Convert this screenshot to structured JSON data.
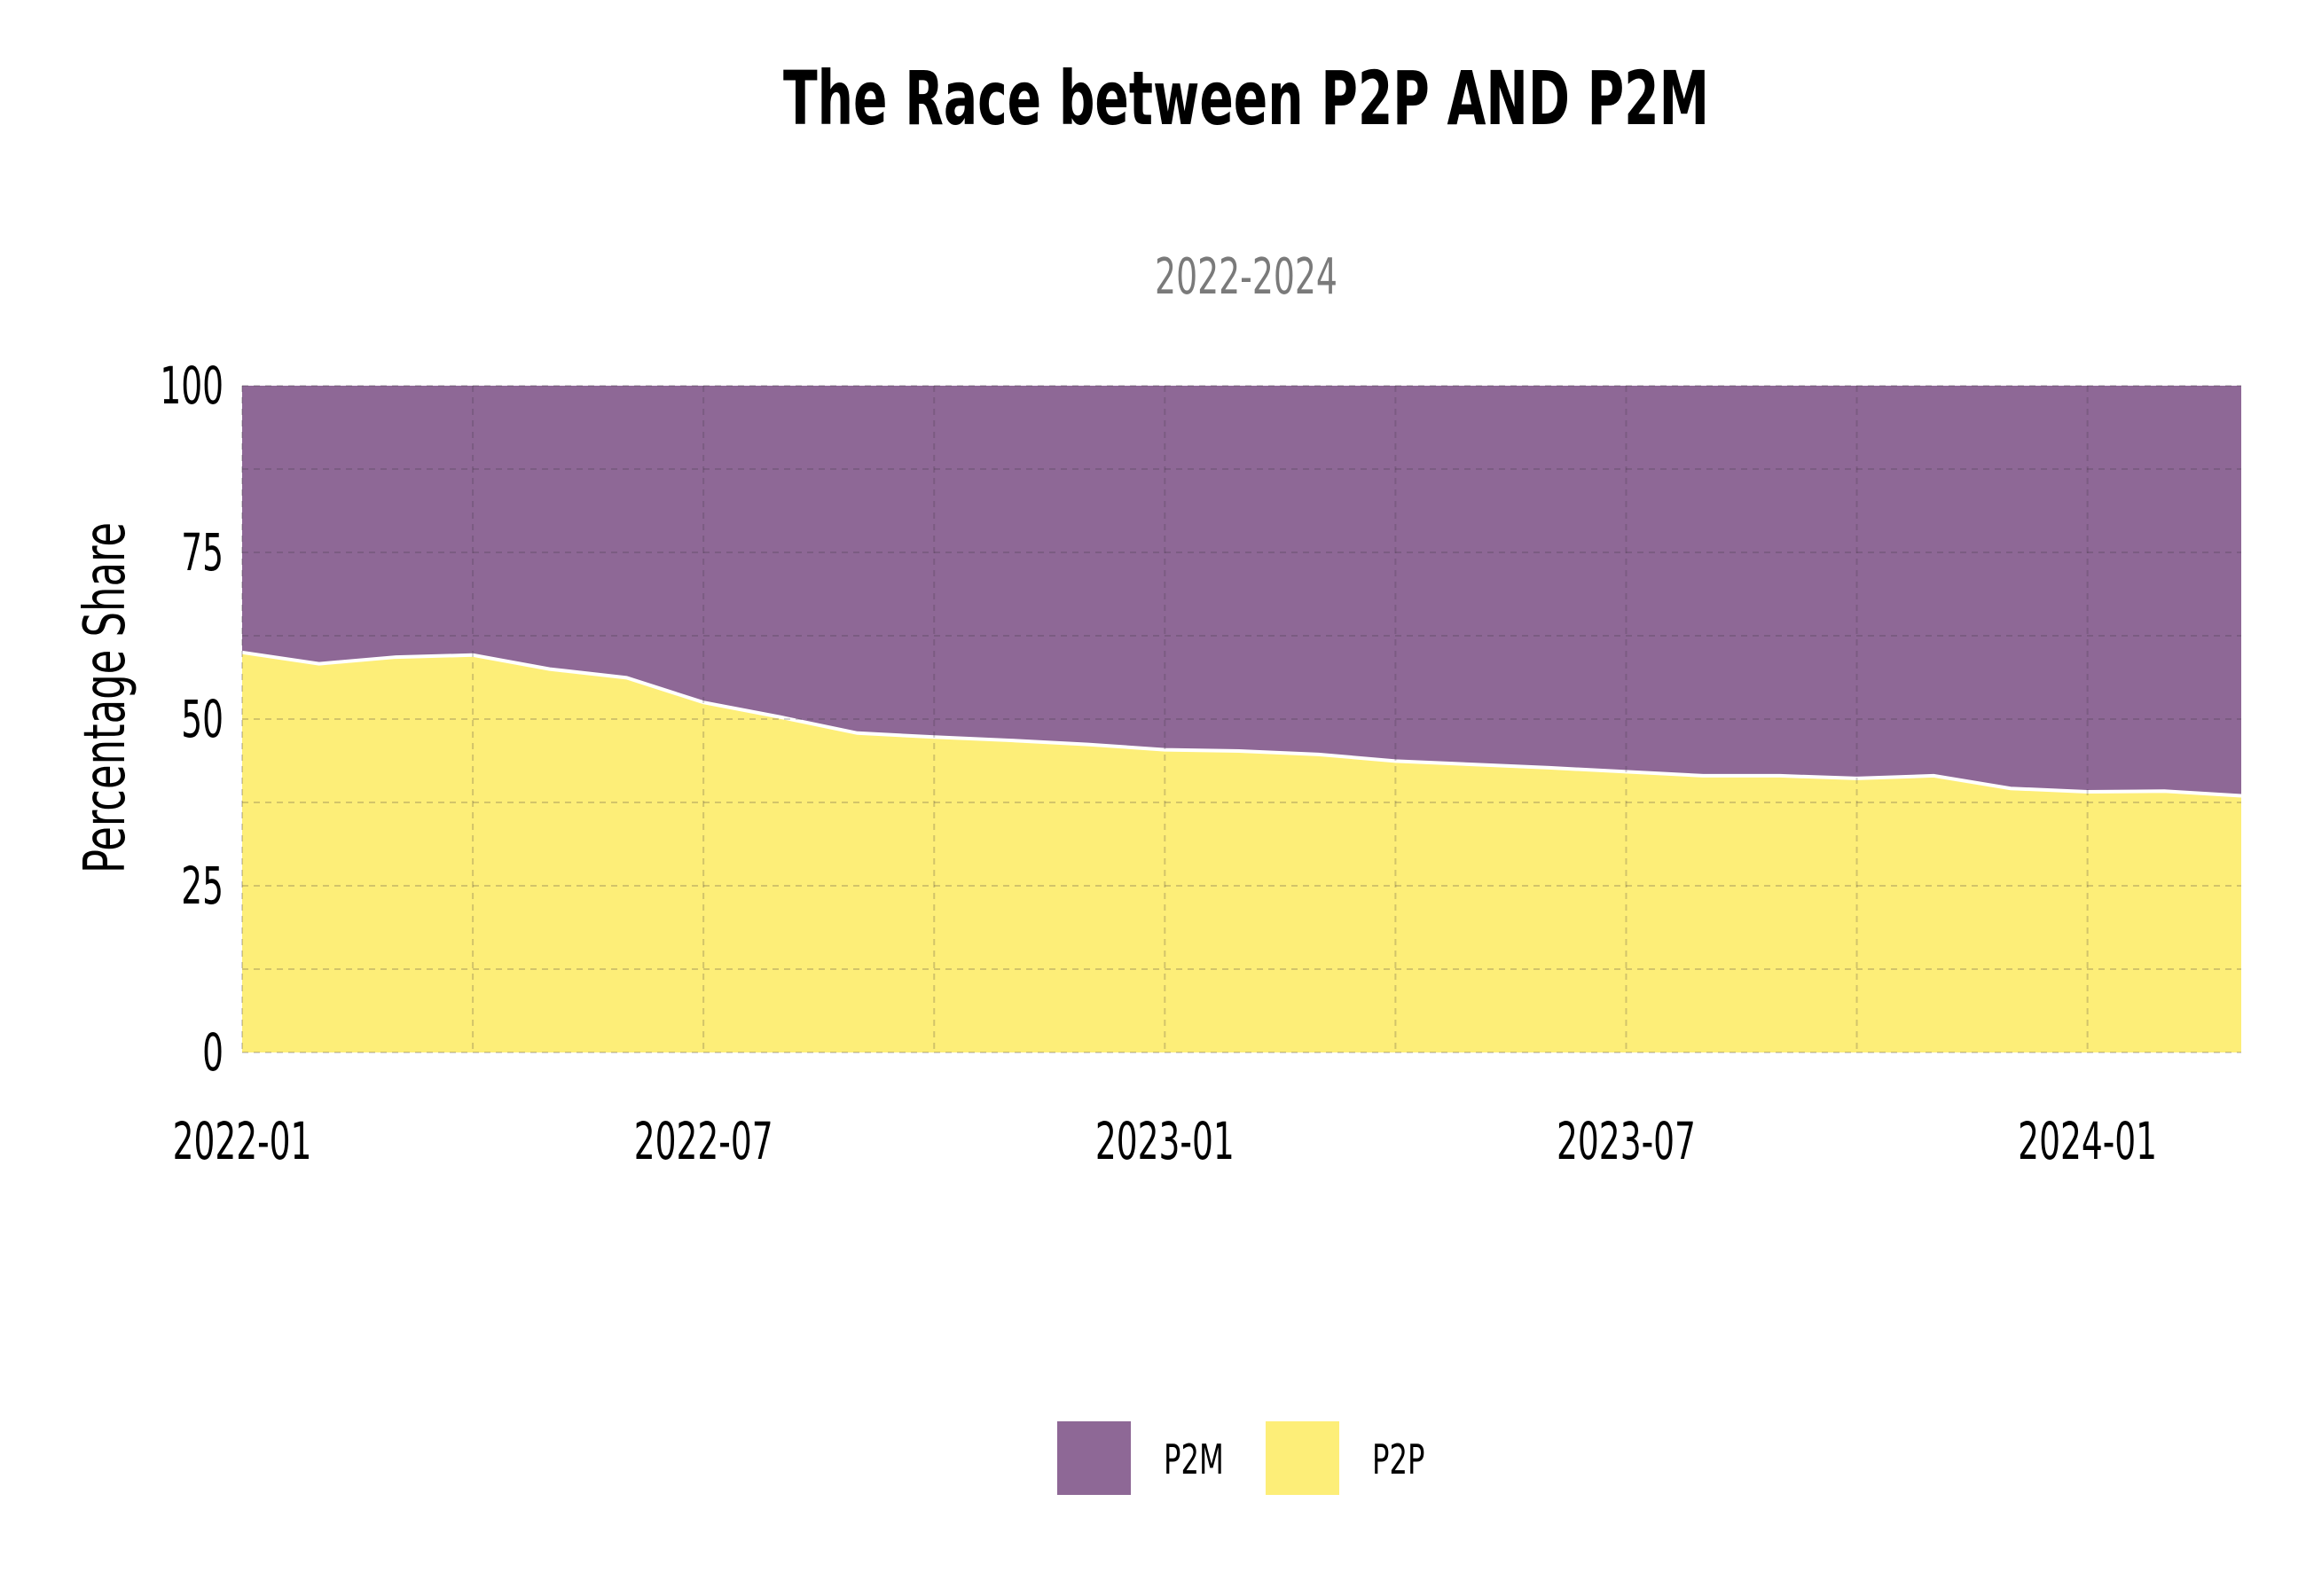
{
  "chart_data": {
    "type": "area",
    "stacked": true,
    "normalized_percent": true,
    "title": "The Race between P2P AND P2M",
    "subtitle": "2022-2024",
    "ylabel": "Percentage Share",
    "xlabel": "",
    "ylim": [
      0,
      100
    ],
    "y_ticks": [
      "0",
      "25",
      "50",
      "75",
      "100"
    ],
    "x_ticks": [
      "2022-01",
      "2022-07",
      "2023-01",
      "2023-07",
      "2024-01"
    ],
    "grid": true,
    "legend_position": "bottom",
    "x": [
      "2022-01",
      "2022-02",
      "2022-03",
      "2022-04",
      "2022-05",
      "2022-06",
      "2022-07",
      "2022-08",
      "2022-09",
      "2022-10",
      "2022-11",
      "2022-12",
      "2023-01",
      "2023-02",
      "2023-03",
      "2023-04",
      "2023-05",
      "2023-06",
      "2023-07",
      "2023-08",
      "2023-09",
      "2023-10",
      "2023-11",
      "2023-12",
      "2024-01",
      "2024-02",
      "2024-03"
    ],
    "series": [
      {
        "name": "P2P",
        "color": "#fdee78",
        "values": [
          60.0,
          58.3,
          59.3,
          59.6,
          57.5,
          56.2,
          52.5,
          50.3,
          47.9,
          47.3,
          46.8,
          46.2,
          45.4,
          45.2,
          44.7,
          43.7,
          43.2,
          42.7,
          42.1,
          41.5,
          41.5,
          41.1,
          41.5,
          39.6,
          39.1,
          39.2,
          38.5
        ]
      },
      {
        "name": "P2M",
        "color": "#8e6896",
        "values": [
          40.0,
          41.7,
          40.7,
          40.4,
          42.5,
          43.8,
          47.5,
          49.7,
          52.1,
          52.7,
          53.2,
          53.8,
          54.6,
          54.8,
          55.3,
          56.3,
          56.8,
          57.3,
          57.9,
          58.5,
          58.5,
          58.9,
          58.5,
          60.4,
          60.9,
          60.8,
          61.5
        ]
      }
    ],
    "legend": [
      {
        "label": "P2M",
        "color": "#8e6896"
      },
      {
        "label": "P2P",
        "color": "#fdee78"
      }
    ]
  }
}
